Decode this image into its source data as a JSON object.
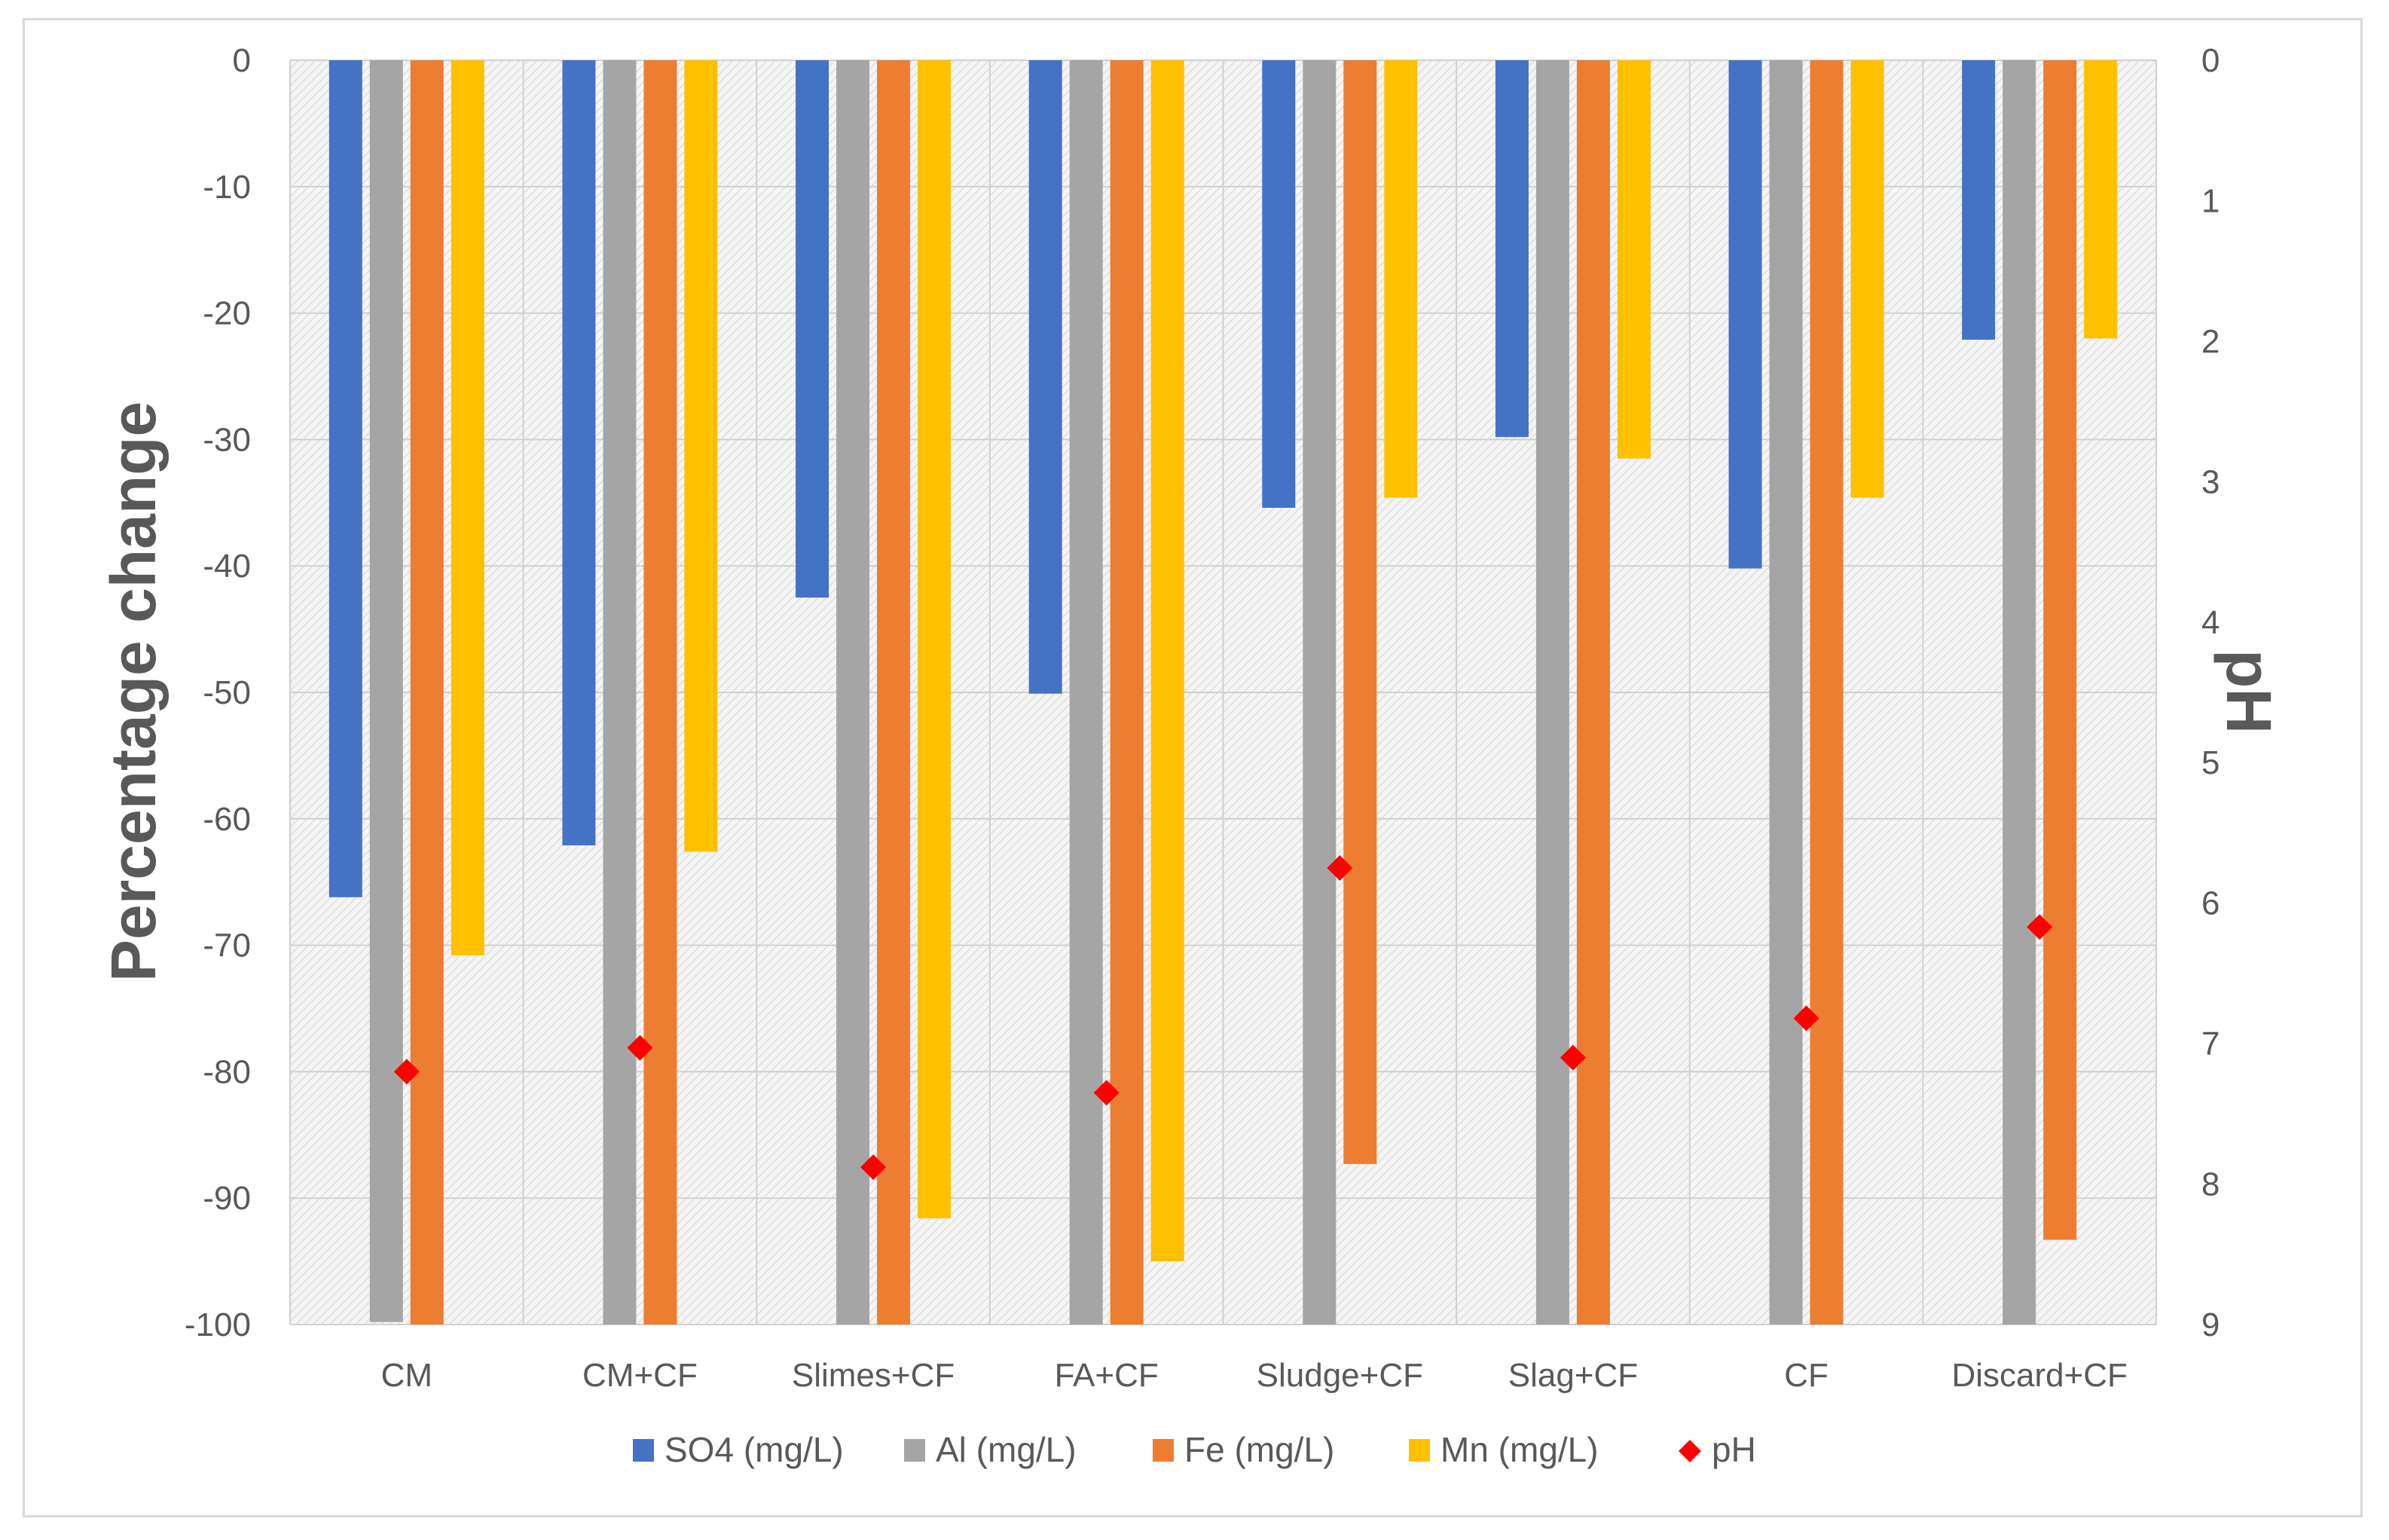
{
  "chart_data": {
    "type": "bar",
    "title": "",
    "categories": [
      "CM",
      "CM+CF",
      "Slimes+CF",
      "FA+CF",
      "Sludge+CF",
      "Slag+CF",
      "CF",
      "Discard+CF"
    ],
    "ylabel": "Percentage change",
    "y2label": "pH",
    "ylim": [
      -100,
      0
    ],
    "y2lim": [
      9,
      0
    ],
    "y2_reversed": true,
    "yticks": [
      "0",
      "-10",
      "-20",
      "-30",
      "-40",
      "-50",
      "-60",
      "-70",
      "-80",
      "-90",
      "-100"
    ],
    "y2ticks": [
      "0",
      "1",
      "2",
      "3",
      "4",
      "5",
      "6",
      "7",
      "8",
      "9"
    ],
    "grid": true,
    "legend_position": "bottom",
    "series": [
      {
        "name": "SO4 (mg/L)",
        "type": "bar",
        "axis": "left",
        "color": "#4472C4",
        "values": [
          -66.2,
          -62.1,
          -42.5,
          -50.1,
          -35.4,
          -29.8,
          -40.2,
          -22.1
        ]
      },
      {
        "name": "Al (mg/L)",
        "type": "bar",
        "axis": "left",
        "color": "#A5A5A5",
        "values": [
          -99.8,
          -100,
          -100,
          -100,
          -100,
          -100,
          -100,
          -100
        ]
      },
      {
        "name": "Fe (mg/L)",
        "type": "bar",
        "axis": "left",
        "color": "#ED7D31",
        "values": [
          -100,
          -100,
          -100,
          -100,
          -87.3,
          -100,
          -100,
          -93.3
        ]
      },
      {
        "name": "Mn (mg/L)",
        "type": "bar",
        "axis": "left",
        "color": "#FFC000",
        "values": [
          -70.8,
          -62.6,
          -91.6,
          -95.0,
          -34.6,
          -31.5,
          -34.6,
          -22.0
        ]
      },
      {
        "name": "pH",
        "type": "scatter",
        "axis": "right",
        "color": "#FF0000",
        "marker": "diamond",
        "values": [
          7.2,
          7.03,
          7.88,
          7.35,
          5.75,
          7.1,
          6.82,
          6.17
        ]
      }
    ]
  }
}
